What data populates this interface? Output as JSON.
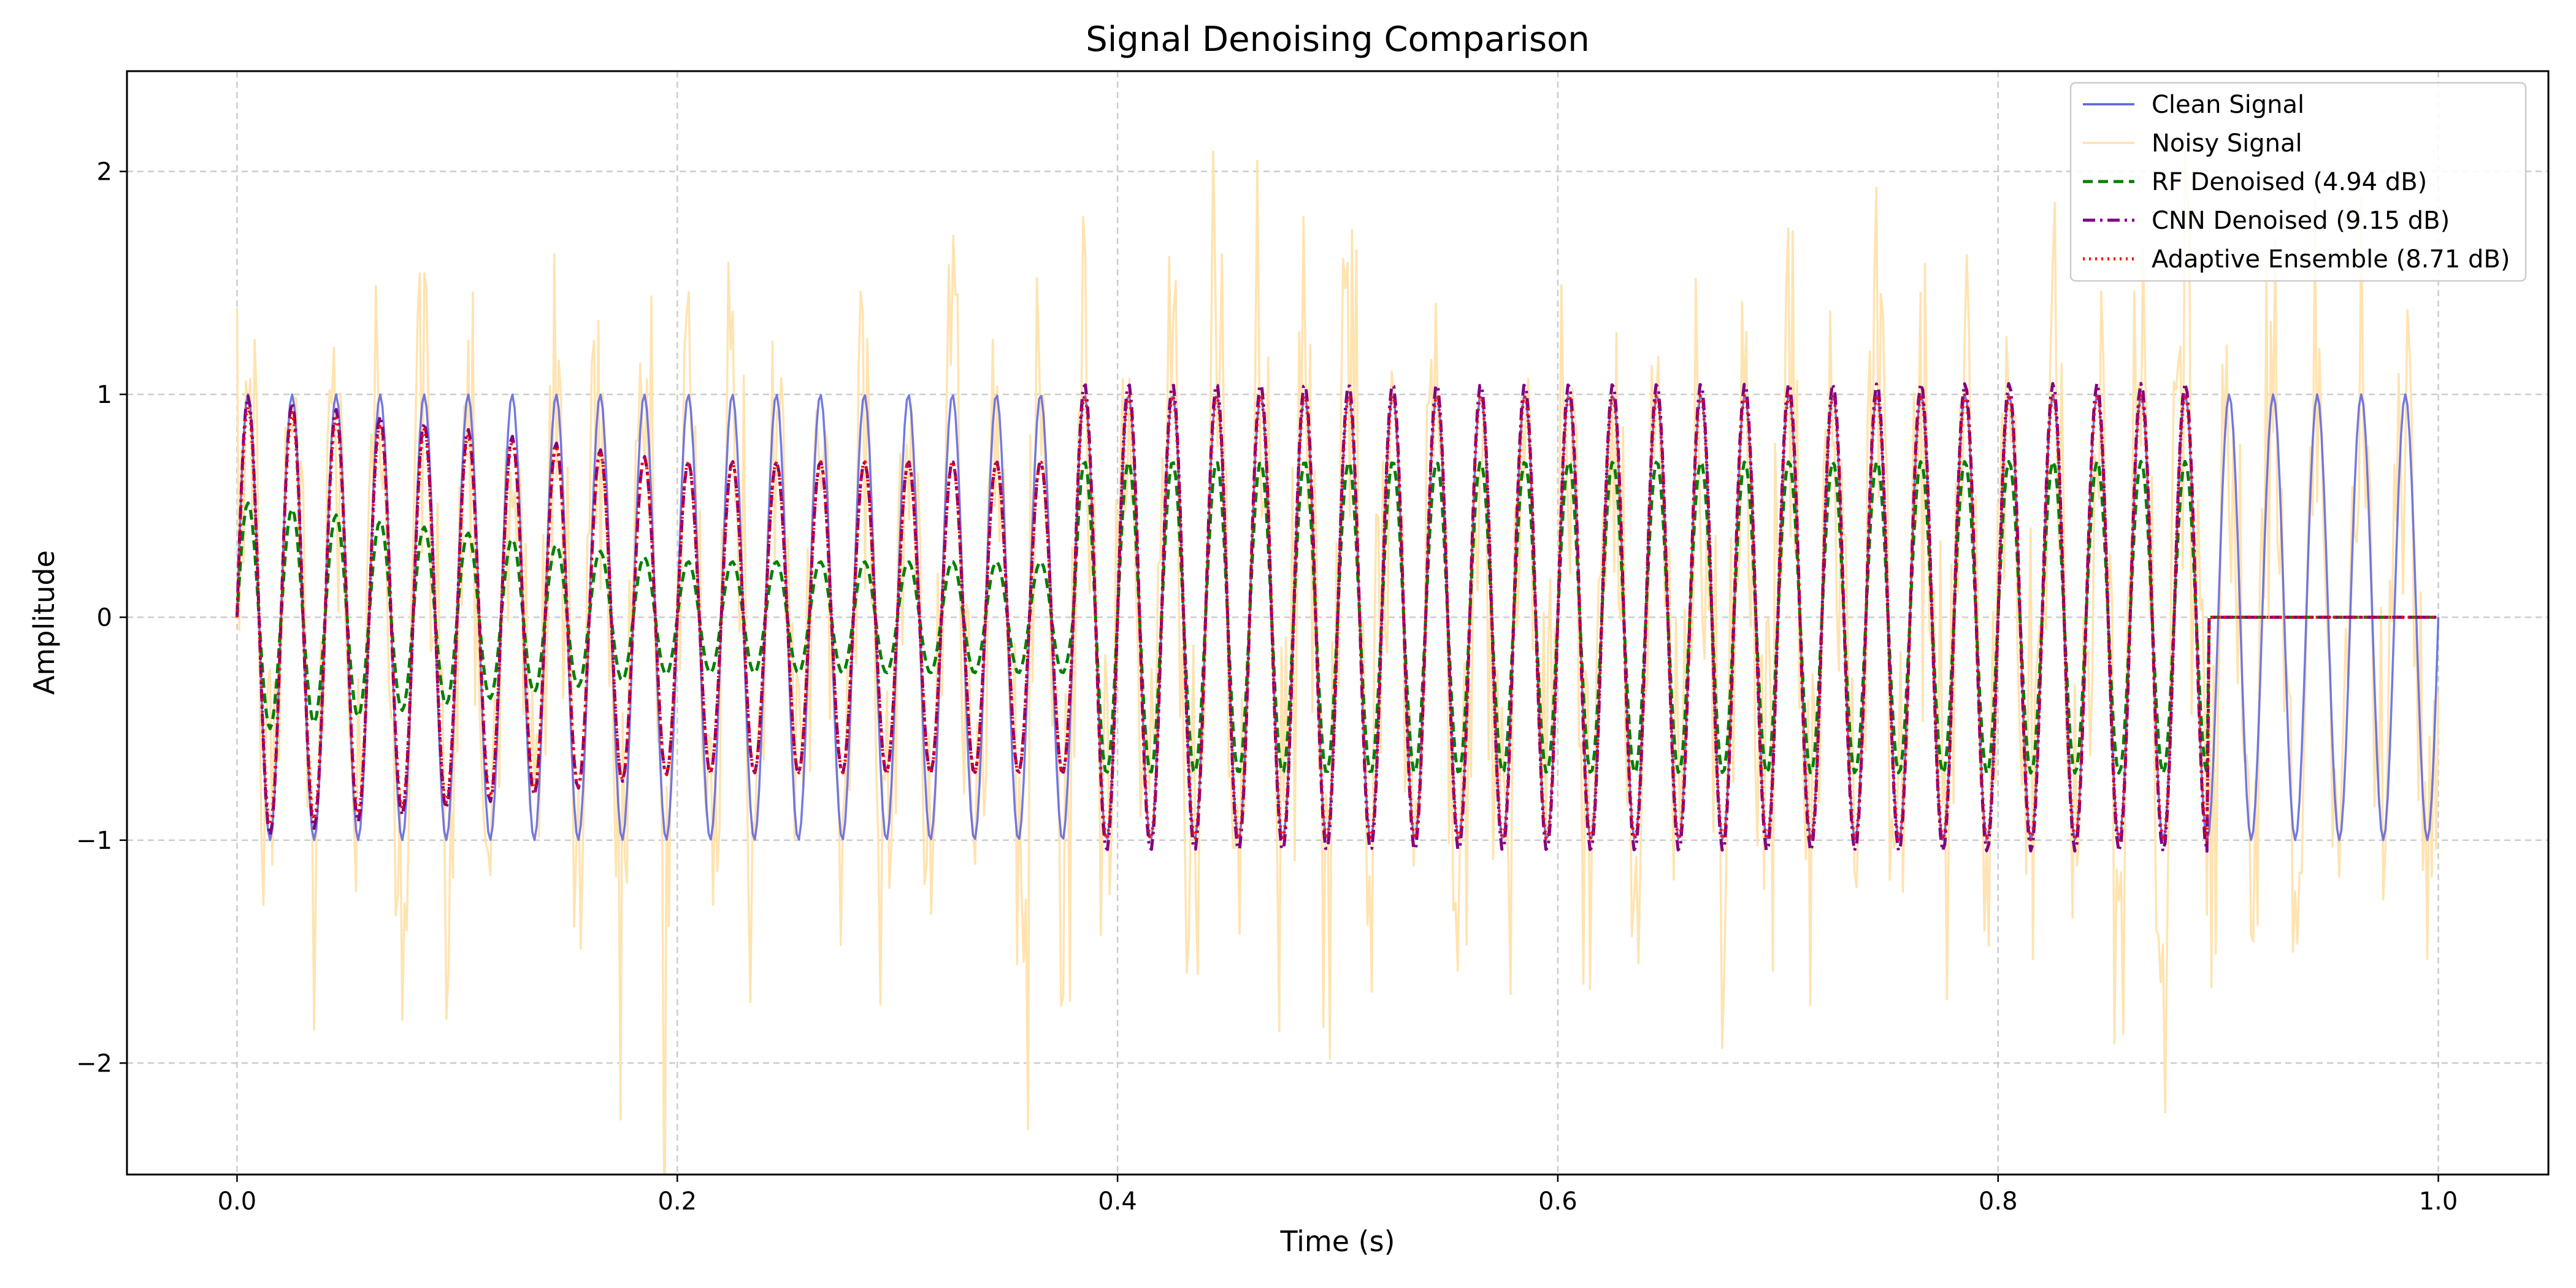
{
  "chart_data": {
    "type": "line",
    "title": "Signal Denoising Comparison",
    "xlabel": "Time (s)",
    "ylabel": "Amplitude",
    "xlim": [
      -0.05,
      1.05
    ],
    "ylim": [
      -2.5,
      2.45
    ],
    "x_ticks": [
      0.0,
      0.2,
      0.4,
      0.6,
      0.8,
      1.0
    ],
    "x_tick_labels": [
      "0.0",
      "0.2",
      "0.4",
      "0.6",
      "0.8",
      "1.0"
    ],
    "y_ticks": [
      -2,
      -1,
      0,
      1,
      2
    ],
    "y_tick_labels": [
      "−2",
      "−1",
      "0",
      "1",
      "2"
    ],
    "grid": true,
    "legend_position": "top-right",
    "signal": {
      "frequency_hz": 50,
      "samples": 1000,
      "denoised_until_s": 0.895
    },
    "series": [
      {
        "name": "Clean Signal",
        "color": "#5a62de",
        "style": "solid",
        "model": "sine",
        "amplitude": 1.0
      },
      {
        "name": "Noisy Signal",
        "color": "#ffe3b0",
        "style": "solid",
        "model": "sine_plus_noise",
        "amplitude": 1.0,
        "noise_std": 0.5
      },
      {
        "name": "RF Denoised (4.94 dB)",
        "color": "#008000",
        "style": "dashed",
        "model": "denoised",
        "amplitude_start": 0.52,
        "amplitude_mid": 0.25,
        "amplitude_end": 0.7
      },
      {
        "name": "CNN Denoised (9.15 dB)",
        "color": "#800080",
        "style": "dashdot",
        "model": "denoised",
        "amplitude_start": 1.0,
        "amplitude_mid": 0.7,
        "amplitude_end": 1.05
      },
      {
        "name": "Adaptive Ensemble (8.71 dB)",
        "color": "#ff0000",
        "style": "dotted",
        "model": "denoised",
        "amplitude_start": 0.95,
        "amplitude_mid": 0.7,
        "amplitude_end": 1.0
      }
    ]
  }
}
